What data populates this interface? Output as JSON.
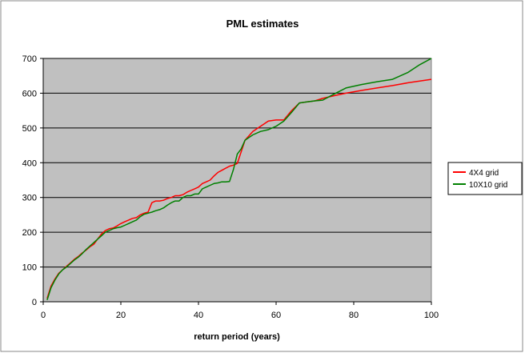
{
  "chart_data": {
    "type": "line",
    "title": "PML estimates",
    "xlabel": "return period (years)",
    "ylabel": "",
    "xlim": [
      0,
      100
    ],
    "ylim": [
      0,
      700
    ],
    "x_ticks": [
      0,
      20,
      40,
      60,
      80,
      100
    ],
    "y_ticks": [
      0,
      100,
      200,
      300,
      400,
      500,
      600,
      700
    ],
    "grid": "horizontal",
    "plot_background": "#c0c0c0",
    "legend_position": "right",
    "series": [
      {
        "name": "4X4 grid",
        "color": "#ff0000",
        "x": [
          1,
          2,
          3,
          4,
          5,
          6,
          7,
          8,
          9,
          10,
          11,
          12,
          13,
          14,
          15,
          16,
          17,
          18,
          19,
          20,
          21,
          22,
          23,
          24,
          25,
          26,
          27,
          28,
          29,
          30,
          31,
          32,
          33,
          34,
          35,
          36,
          37,
          38,
          39,
          40,
          41,
          42,
          43,
          44,
          45,
          46,
          47,
          48,
          49,
          50,
          52,
          54,
          56,
          58,
          60,
          62,
          64,
          66,
          68,
          70,
          72,
          75,
          78,
          82,
          86,
          90,
          94,
          97,
          100
        ],
        "y": [
          10,
          45,
          65,
          82,
          92,
          102,
          112,
          122,
          130,
          140,
          148,
          158,
          165,
          180,
          195,
          205,
          210,
          212,
          218,
          225,
          230,
          235,
          240,
          242,
          250,
          255,
          258,
          285,
          290,
          290,
          292,
          297,
          300,
          305,
          305,
          308,
          315,
          320,
          325,
          330,
          340,
          345,
          350,
          362,
          372,
          378,
          384,
          390,
          393,
          398,
          465,
          490,
          505,
          520,
          523,
          523,
          550,
          572,
          575,
          578,
          585,
          593,
          600,
          608,
          615,
          622,
          630,
          635,
          640
        ]
      },
      {
        "name": "10X10 grid",
        "color": "#008000",
        "x": [
          1,
          2,
          3,
          4,
          5,
          6,
          7,
          8,
          9,
          10,
          11,
          12,
          13,
          14,
          15,
          16,
          17,
          18,
          19,
          20,
          21,
          22,
          23,
          24,
          25,
          26,
          27,
          28,
          29,
          30,
          31,
          32,
          33,
          34,
          35,
          36,
          37,
          38,
          39,
          40,
          41,
          42,
          43,
          44,
          45,
          46,
          47,
          48,
          49,
          50,
          51,
          52,
          54,
          56,
          58,
          60,
          62,
          64,
          66,
          68,
          70,
          72,
          75,
          78,
          82,
          86,
          90,
          94,
          97,
          100
        ],
        "y": [
          5,
          40,
          62,
          80,
          92,
          100,
          110,
          120,
          128,
          138,
          150,
          160,
          170,
          180,
          190,
          200,
          205,
          210,
          213,
          215,
          220,
          225,
          230,
          235,
          245,
          252,
          255,
          258,
          262,
          265,
          270,
          278,
          285,
          290,
          290,
          300,
          305,
          305,
          310,
          310,
          325,
          330,
          335,
          340,
          342,
          345,
          345,
          346,
          380,
          425,
          440,
          465,
          480,
          490,
          495,
          505,
          520,
          545,
          572,
          575,
          578,
          580,
          598,
          615,
          625,
          633,
          640,
          660,
          682,
          700
        ]
      }
    ]
  }
}
